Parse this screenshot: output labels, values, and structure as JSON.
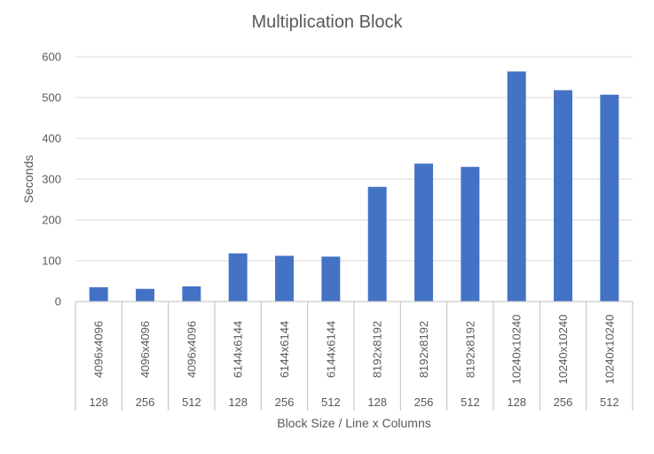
{
  "chart_data": {
    "type": "bar",
    "title": "Multiplication Block",
    "xlabel": "Block Size / Line x Columns",
    "ylabel": "Seconds",
    "ylim": [
      0,
      600
    ],
    "yticks": [
      0,
      100,
      200,
      300,
      400,
      500,
      600
    ],
    "grid": true,
    "legend": "none",
    "bar_color": "#4472c4",
    "categories": [
      {
        "matrix": "4096x4096",
        "block": "128"
      },
      {
        "matrix": "4096x4096",
        "block": "256"
      },
      {
        "matrix": "4096x4096",
        "block": "512"
      },
      {
        "matrix": "6144x6144",
        "block": "128"
      },
      {
        "matrix": "6144x6144",
        "block": "256"
      },
      {
        "matrix": "6144x6144",
        "block": "512"
      },
      {
        "matrix": "8192x8192",
        "block": "128"
      },
      {
        "matrix": "8192x8192",
        "block": "256"
      },
      {
        "matrix": "8192x8192",
        "block": "512"
      },
      {
        "matrix": "10240x10240",
        "block": "128"
      },
      {
        "matrix": "10240x10240",
        "block": "256"
      },
      {
        "matrix": "10240x10240",
        "block": "512"
      }
    ],
    "values": [
      35,
      31,
      37,
      118,
      112,
      110,
      281,
      338,
      330,
      564,
      518,
      507
    ]
  }
}
